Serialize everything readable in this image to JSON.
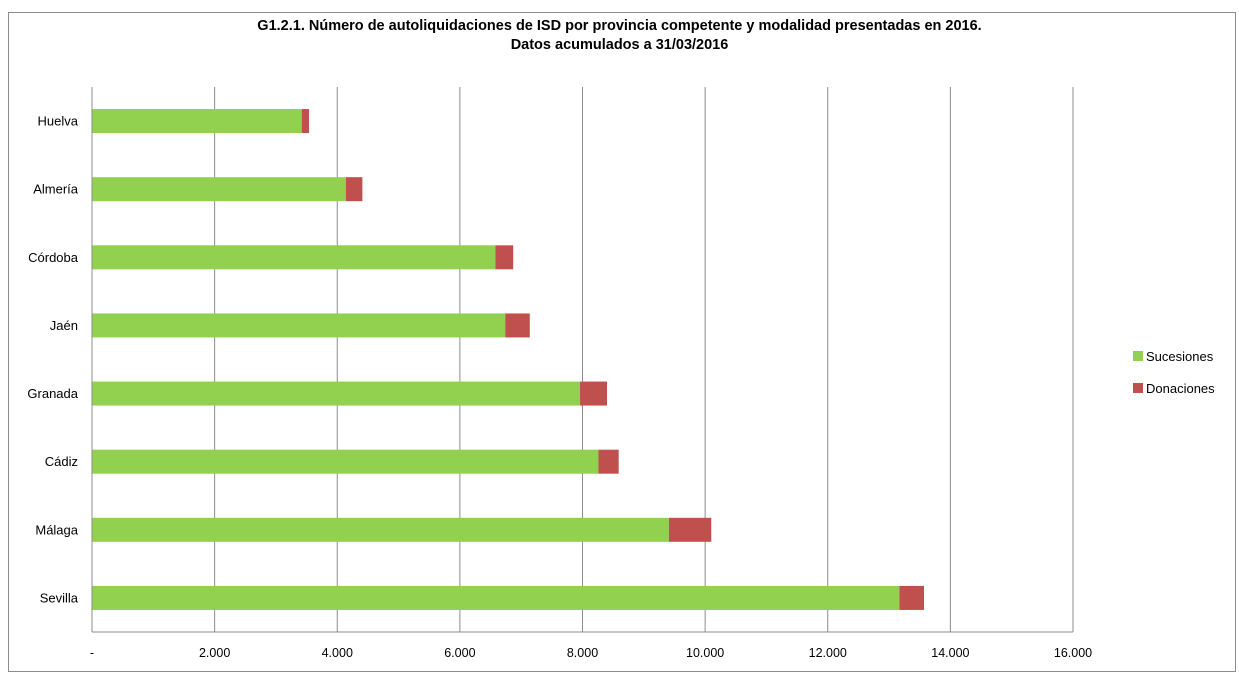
{
  "chart_data": {
    "type": "bar",
    "orientation": "horizontal",
    "stacked": true,
    "title": [
      "G1.2.1. Número de autoliquidaciones de ISD por provincia competente y modalidad presentadas en 2016.",
      "Datos acumulados a 31/03/2016"
    ],
    "categories": [
      "Huelva",
      "Almería",
      "Córdoba",
      "Jaén",
      "Granada",
      "Cádiz",
      "Málaga",
      "Sevilla"
    ],
    "series": [
      {
        "name": "Sucesiones",
        "color": "#92d050",
        "values": [
          3420,
          4140,
          6580,
          6740,
          7960,
          8260,
          9410,
          13170
        ]
      },
      {
        "name": "Donaciones",
        "color": "#c0504d",
        "values": [
          120,
          270,
          290,
          400,
          440,
          330,
          690,
          400
        ]
      }
    ],
    "xlim": [
      0,
      16000
    ],
    "x_ticks": [
      0,
      2000,
      4000,
      6000,
      8000,
      10000,
      12000,
      14000,
      16000
    ],
    "x_tick_labels": [
      "-",
      "2.000",
      "4.000",
      "6.000",
      "8.000",
      "10.000",
      "12.000",
      "14.000",
      "16.000"
    ],
    "grid": "vertical",
    "legend": "right"
  }
}
